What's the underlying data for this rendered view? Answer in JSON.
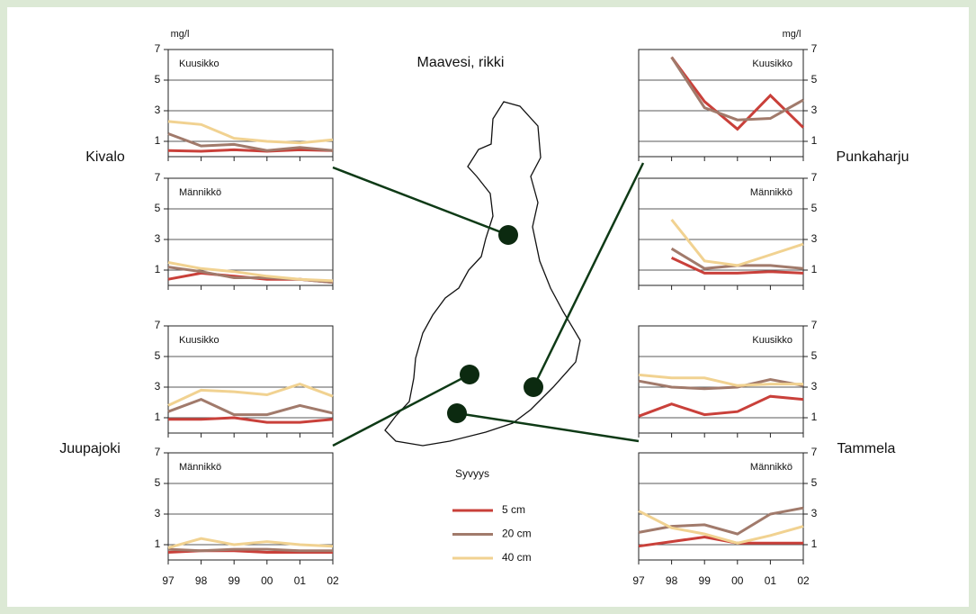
{
  "title": "Maavesi, rikki",
  "unit": "mg/l",
  "legend_title": "Syvyys",
  "sites": [
    "Kivalo",
    "Juupajoki",
    "Punkaharju",
    "Tammela"
  ],
  "chart_data": [
    {
      "type": "line",
      "title": "Kuusikko",
      "categories": [
        "97",
        "98",
        "99",
        "00",
        "01",
        "02"
      ],
      "ylim": [
        0,
        7
      ],
      "yticks": [
        1,
        3,
        5,
        7
      ],
      "grid": true,
      "series": [
        {
          "name": "5 cm",
          "color": "#c9403a",
          "values": [
            0.4,
            0.35,
            0.45,
            0.35,
            0.45,
            0.4
          ]
        },
        {
          "name": "20 cm",
          "color": "#a17a6b",
          "values": [
            1.5,
            0.7,
            0.8,
            0.4,
            0.6,
            0.4
          ]
        },
        {
          "name": "40 cm",
          "color": "#f1d291",
          "values": [
            2.3,
            2.1,
            1.2,
            1.0,
            0.9,
            1.1
          ]
        }
      ]
    },
    {
      "type": "line",
      "title": "Männikkö",
      "categories": [
        "97",
        "98",
        "99",
        "00",
        "01",
        "02"
      ],
      "ylim": [
        0,
        7
      ],
      "yticks": [
        1,
        3,
        5,
        7
      ],
      "grid": true,
      "series": [
        {
          "name": "5 cm",
          "color": "#c9403a",
          "values": [
            0.4,
            0.8,
            0.6,
            0.4,
            0.4,
            0.2
          ]
        },
        {
          "name": "20 cm",
          "color": "#a17a6b",
          "values": [
            1.2,
            0.9,
            0.5,
            0.5,
            0.4,
            0.2
          ]
        },
        {
          "name": "40 cm",
          "color": "#f1d291",
          "values": [
            1.5,
            1.1,
            0.9,
            0.6,
            0.4,
            0.3
          ]
        }
      ]
    },
    {
      "type": "line",
      "title": "Kuusikko",
      "categories": [
        "97",
        "98",
        "99",
        "00",
        "01",
        "02"
      ],
      "ylim": [
        0,
        7
      ],
      "yticks": [
        1,
        3,
        5,
        7
      ],
      "grid": true,
      "series": [
        {
          "name": "5 cm",
          "color": "#c9403a",
          "values": [
            0.9,
            0.9,
            1.0,
            0.7,
            0.7,
            0.9
          ]
        },
        {
          "name": "20 cm",
          "color": "#a17a6b",
          "values": [
            1.4,
            2.2,
            1.2,
            1.2,
            1.8,
            1.3
          ]
        },
        {
          "name": "40 cm",
          "color": "#f1d291",
          "values": [
            1.8,
            2.8,
            2.7,
            2.5,
            3.2,
            2.4
          ]
        }
      ]
    },
    {
      "type": "line",
      "title": "Männikkö",
      "categories": [
        "97",
        "98",
        "99",
        "00",
        "01",
        "02"
      ],
      "ylim": [
        0,
        7
      ],
      "yticks": [
        1,
        3,
        5,
        7
      ],
      "grid": true,
      "series": [
        {
          "name": "5 cm",
          "color": "#c9403a",
          "values": [
            0.5,
            0.6,
            0.6,
            0.5,
            0.5,
            0.5
          ]
        },
        {
          "name": "20 cm",
          "color": "#a17a6b",
          "values": [
            0.7,
            0.6,
            0.7,
            0.7,
            0.6,
            0.6
          ]
        },
        {
          "name": "40 cm",
          "color": "#f1d291",
          "values": [
            0.8,
            1.4,
            1.0,
            1.2,
            1.0,
            0.9
          ]
        }
      ]
    },
    {
      "type": "line",
      "title": "Kuusikko",
      "categories": [
        "97",
        "98",
        "99",
        "00",
        "01",
        "02"
      ],
      "ylim": [
        0,
        7
      ],
      "yticks": [
        1,
        3,
        5,
        7
      ],
      "grid": true,
      "series": [
        {
          "name": "5 cm",
          "color": "#c9403a",
          "values": [
            null,
            6.5,
            3.6,
            1.8,
            4.0,
            1.9
          ]
        },
        {
          "name": "20 cm",
          "color": "#a17a6b",
          "values": [
            null,
            6.5,
            3.2,
            2.4,
            2.5,
            3.7
          ]
        }
      ]
    },
    {
      "type": "line",
      "title": "Männikkö",
      "categories": [
        "97",
        "98",
        "99",
        "00",
        "01",
        "02"
      ],
      "ylim": [
        0,
        7
      ],
      "yticks": [
        1,
        3,
        5,
        7
      ],
      "grid": true,
      "series": [
        {
          "name": "5 cm",
          "color": "#c9403a",
          "values": [
            null,
            1.8,
            0.8,
            0.8,
            0.9,
            0.8
          ]
        },
        {
          "name": "20 cm",
          "color": "#a17a6b",
          "values": [
            null,
            2.4,
            1.1,
            1.3,
            1.3,
            1.1
          ]
        },
        {
          "name": "40 cm",
          "color": "#f1d291",
          "values": [
            null,
            4.3,
            1.6,
            1.3,
            2.0,
            2.7
          ]
        }
      ]
    },
    {
      "type": "line",
      "title": "Kuusikko",
      "categories": [
        "97",
        "98",
        "99",
        "00",
        "01",
        "02"
      ],
      "ylim": [
        0,
        7
      ],
      "yticks": [
        1,
        3,
        5,
        7
      ],
      "grid": true,
      "series": [
        {
          "name": "5 cm",
          "color": "#c9403a",
          "values": [
            1.1,
            1.9,
            1.2,
            1.4,
            2.4,
            2.2
          ]
        },
        {
          "name": "20 cm",
          "color": "#a17a6b",
          "values": [
            3.4,
            3.0,
            2.9,
            3.0,
            3.5,
            3.1
          ]
        },
        {
          "name": "40 cm",
          "color": "#f1d291",
          "values": [
            3.8,
            3.6,
            3.6,
            3.1,
            3.2,
            3.2
          ]
        }
      ]
    },
    {
      "type": "line",
      "title": "Männikkö",
      "categories": [
        "97",
        "98",
        "99",
        "00",
        "01",
        "02"
      ],
      "ylim": [
        0,
        7
      ],
      "yticks": [
        1,
        3,
        5,
        7
      ],
      "grid": true,
      "series": [
        {
          "name": "5 cm",
          "color": "#c9403a",
          "values": [
            0.9,
            1.2,
            1.5,
            1.1,
            1.1,
            1.1
          ]
        },
        {
          "name": "20 cm",
          "color": "#a17a6b",
          "values": [
            1.8,
            2.2,
            2.3,
            1.7,
            3.0,
            3.4
          ]
        },
        {
          "name": "40 cm",
          "color": "#f1d291",
          "values": [
            3.2,
            2.1,
            1.7,
            1.1,
            1.6,
            2.2
          ]
        }
      ]
    }
  ]
}
